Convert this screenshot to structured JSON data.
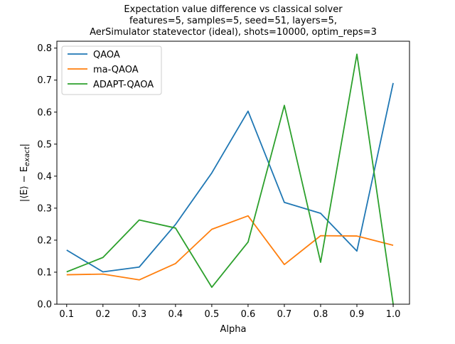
{
  "chart_data": {
    "type": "line",
    "title_lines": [
      "Expectation value difference vs classical solver",
      "features=5, samples=5, seed=51, layers=5,",
      "AerSimulator statevector (ideal), shots=10000, optim_reps=3"
    ],
    "xlabel": "Alpha",
    "ylabel": "|⟨E⟩ − E",
    "ylabel_sub": "exact",
    "ylabel_end": "|",
    "x": [
      0.1,
      0.2,
      0.3,
      0.4,
      0.5,
      0.6,
      0.7,
      0.8,
      0.9,
      1.0
    ],
    "x_ticks": [
      "0.1",
      "0.2",
      "0.3",
      "0.4",
      "0.5",
      "0.6",
      "0.7",
      "0.8",
      "0.9",
      "1.0"
    ],
    "y_ticks": [
      "0.0",
      "0.1",
      "0.2",
      "0.3",
      "0.4",
      "0.5",
      "0.6",
      "0.7",
      "0.8"
    ],
    "xlim": [
      0.073,
      1.045
    ],
    "ylim": [
      0.0,
      0.8215
    ],
    "grid": false,
    "legend_position": "top-left",
    "series": [
      {
        "name": "QAOA",
        "color": "#1f77b4",
        "values": [
          0.169,
          0.101,
          0.116,
          0.249,
          0.41,
          0.603,
          0.318,
          0.284,
          0.166,
          0.691
        ]
      },
      {
        "name": "ma-QAOA",
        "color": "#ff7f0e",
        "values": [
          0.092,
          0.094,
          0.076,
          0.127,
          0.234,
          0.276,
          0.124,
          0.214,
          0.213,
          0.184
        ]
      },
      {
        "name": "ADAPT-QAOA",
        "color": "#2ca02c",
        "values": [
          0.101,
          0.146,
          0.263,
          0.238,
          0.053,
          0.194,
          0.621,
          0.131,
          0.781,
          0.0
        ]
      }
    ]
  }
}
